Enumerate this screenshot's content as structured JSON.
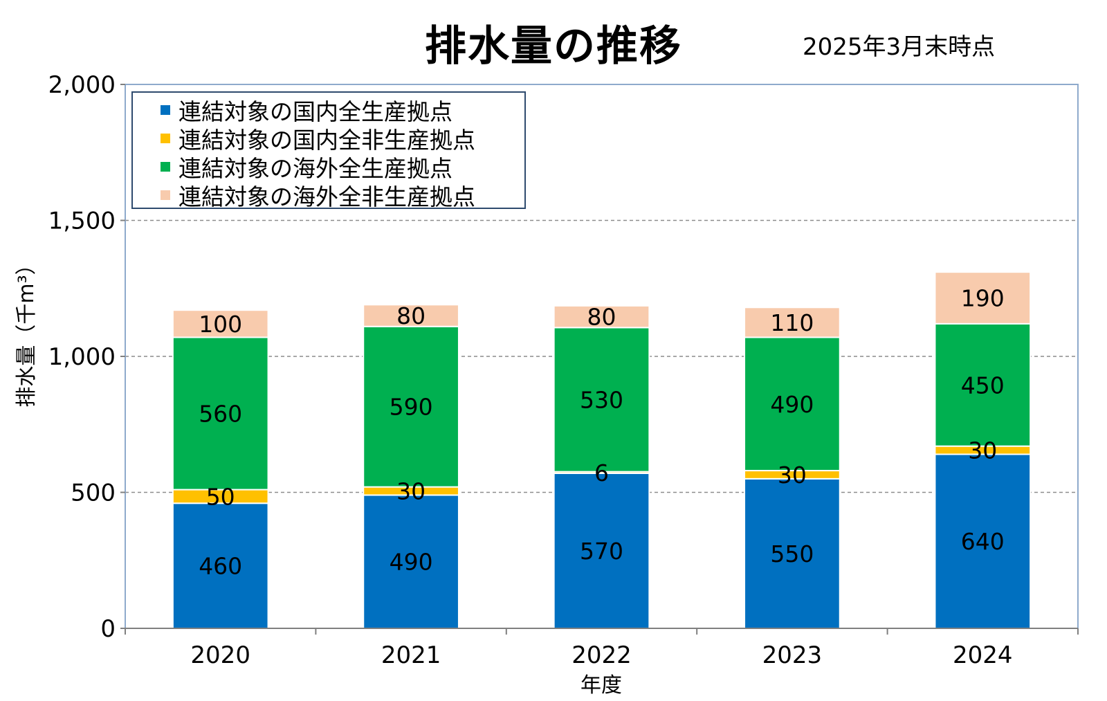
{
  "title": "排水量の推移",
  "subtitle": "2025年3月末時点",
  "chart_data": {
    "type": "bar",
    "stacked": true,
    "categories": [
      "2020",
      "2021",
      "2022",
      "2023",
      "2024"
    ],
    "series": [
      {
        "name": "連結対象の国内全生産拠点",
        "color": "#0070c0",
        "values": [
          460,
          490,
          570,
          550,
          640
        ]
      },
      {
        "name": "連結対象の国内全非生産拠点",
        "color": "#ffc000",
        "values": [
          50,
          30,
          6,
          30,
          30
        ]
      },
      {
        "name": "連結対象の海外全生産拠点",
        "color": "#00b050",
        "values": [
          560,
          590,
          530,
          490,
          450
        ]
      },
      {
        "name": "連結対象の海外全非生産拠点",
        "color": "#f8cbad",
        "values": [
          100,
          80,
          80,
          110,
          190
        ]
      }
    ],
    "xlabel": "年度",
    "ylabel": "排水量（千m³）",
    "ylim": [
      0,
      2000
    ],
    "yticks": [
      0,
      500,
      1000,
      1500,
      2000
    ],
    "ytick_labels": [
      "0",
      "500",
      "1,000",
      "1,500",
      "2,000"
    ],
    "grid": true,
    "legend_position": "top-left"
  }
}
